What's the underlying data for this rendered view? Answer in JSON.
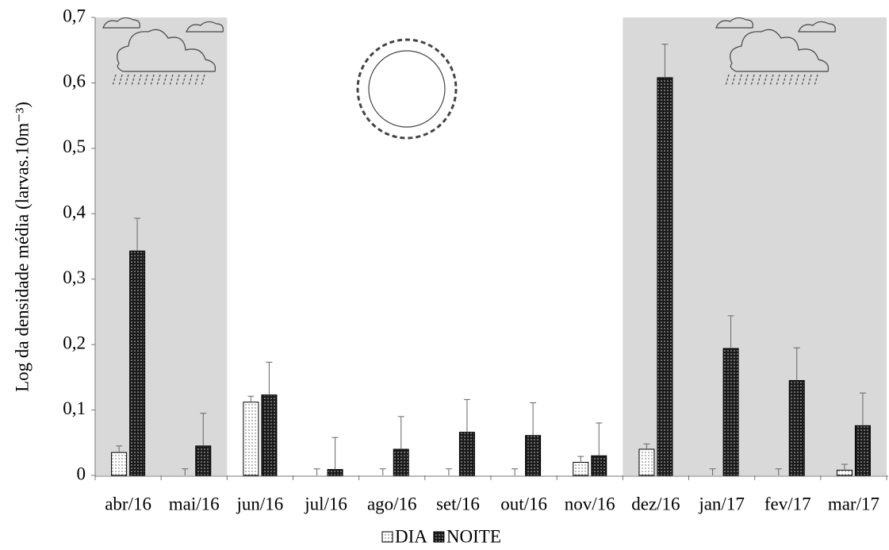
{
  "chart_data": {
    "type": "bar",
    "y_label": "Log da densidade média (larvas.10m⁻³)",
    "categories": [
      "abr/16",
      "mai/16",
      "jun/16",
      "jul/16",
      "ago/16",
      "set/16",
      "out/16",
      "nov/16",
      "dez/16",
      "jan/17",
      "fev/17",
      "mar/17"
    ],
    "series": [
      {
        "name": "DIA",
        "color": "#ffffff",
        "pattern_color": "#555555",
        "values": [
          0.035,
          0,
          0.112,
          0,
          0,
          0,
          0,
          0.02,
          0.04,
          0,
          0,
          0.008
        ],
        "errors": [
          0.01,
          0.01,
          0.009,
          0.01,
          0.01,
          0.01,
          0.01,
          0.009,
          0.008,
          0.01,
          0.01,
          0.009
        ]
      },
      {
        "name": "NOITE",
        "color": "#1a1a1a",
        "pattern_color": "#cccccc",
        "values": [
          0.343,
          0.045,
          0.123,
          0.009,
          0.04,
          0.066,
          0.061,
          0.03,
          0.608,
          0.194,
          0.145,
          0.076
        ],
        "errors": [
          0.05,
          0.05,
          0.05,
          0.049,
          0.05,
          0.05,
          0.05,
          0.05,
          0.051,
          0.05,
          0.05,
          0.05
        ]
      }
    ],
    "ylim": [
      0,
      0.7
    ],
    "yticks": [
      0,
      {
        "value": 0.1,
        "label": "0,1"
      },
      {
        "value": 0.2,
        "label": "0,2"
      },
      {
        "value": 0.3,
        "label": "0,3"
      },
      {
        "value": 0.4,
        "label": "0,4"
      },
      {
        "value": 0.5,
        "label": "0,5"
      },
      {
        "value": 0.6,
        "label": "0,6"
      },
      {
        "value": 0.7,
        "label": "0,7"
      }
    ],
    "shaded_category_ranges": [
      [
        0,
        1
      ],
      [
        8,
        11
      ]
    ],
    "shade_color": "#d9d9d9",
    "legend": "bottom"
  }
}
